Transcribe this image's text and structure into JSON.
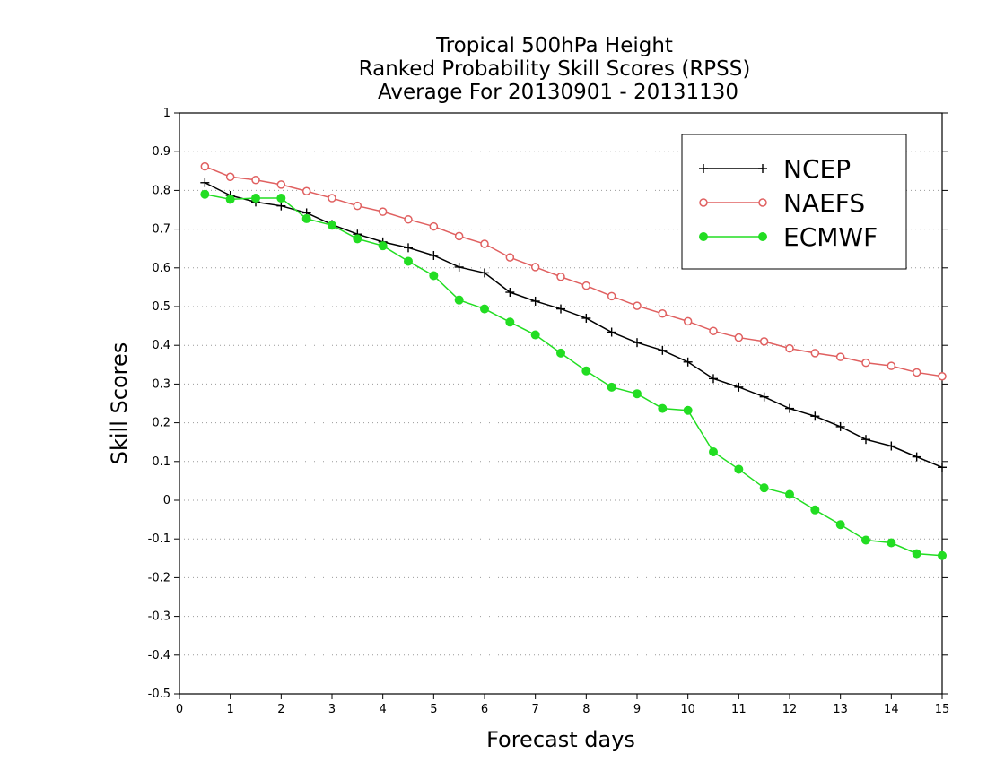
{
  "chart_data": {
    "type": "line",
    "title": [
      "Tropical 500hPa Height",
      "Ranked Probability Skill Scores (RPSS)",
      "Average For 20130901 - 20131130"
    ],
    "xlabel": "Forecast days",
    "ylabel": "Skill Scores",
    "xlim": [
      0,
      15
    ],
    "ylim": [
      -0.5,
      1
    ],
    "x_ticks": [
      0,
      1,
      2,
      3,
      4,
      5,
      6,
      7,
      8,
      9,
      10,
      11,
      12,
      13,
      14,
      15
    ],
    "y_ticks": [
      -0.5,
      -0.4,
      -0.3,
      -0.2,
      -0.1,
      0,
      0.1,
      0.2,
      0.3,
      0.4,
      0.5,
      0.6,
      0.7,
      0.8,
      0.9,
      1
    ],
    "y_tick_labels": [
      "-0.5",
      "-0.4",
      "-0.3",
      "-0.2",
      "-0.1",
      "0",
      "0.1",
      "0.2",
      "0.3",
      "0.4",
      "0.5",
      "0.6",
      "0.7",
      "0.8",
      "0.9",
      "1"
    ],
    "grid": "horizontal dotted",
    "legend_position": "top-right",
    "x": [
      0.5,
      1,
      1.5,
      2,
      2.5,
      3,
      3.5,
      4,
      4.5,
      5,
      5.5,
      6,
      6.5,
      7,
      7.5,
      8,
      8.5,
      9,
      9.5,
      10,
      10.5,
      11,
      11.5,
      12,
      12.5,
      13,
      13.5,
      14,
      14.5,
      15
    ],
    "series": [
      {
        "name": "NCEP",
        "color": "#000000",
        "marker": "plus",
        "values": [
          0.82,
          0.787,
          0.77,
          0.76,
          0.742,
          0.712,
          0.687,
          0.667,
          0.652,
          0.632,
          0.602,
          0.587,
          0.537,
          0.514,
          0.494,
          0.47,
          0.434,
          0.407,
          0.387,
          0.357,
          0.314,
          0.292,
          0.267,
          0.237,
          0.217,
          0.19,
          0.157,
          0.14,
          0.112,
          0.085
        ]
      },
      {
        "name": "NAEFS",
        "color": "#e06060",
        "marker": "open-circle",
        "values": [
          0.862,
          0.835,
          0.827,
          0.815,
          0.798,
          0.78,
          0.76,
          0.745,
          0.725,
          0.707,
          0.682,
          0.662,
          0.627,
          0.602,
          0.577,
          0.554,
          0.527,
          0.502,
          0.482,
          0.462,
          0.437,
          0.42,
          0.41,
          0.392,
          0.38,
          0.37,
          0.355,
          0.347,
          0.33,
          0.32
        ]
      },
      {
        "name": "ECMWF",
        "color": "#22dd22",
        "marker": "filled-circle",
        "values": [
          0.79,
          0.777,
          0.78,
          0.78,
          0.727,
          0.71,
          0.675,
          0.657,
          0.617,
          0.58,
          0.517,
          0.494,
          0.46,
          0.427,
          0.38,
          0.334,
          0.292,
          0.275,
          0.237,
          0.232,
          0.125,
          0.08,
          0.032,
          0.015,
          -0.025,
          -0.063,
          -0.103,
          -0.11,
          -0.138,
          -0.143
        ]
      }
    ]
  }
}
